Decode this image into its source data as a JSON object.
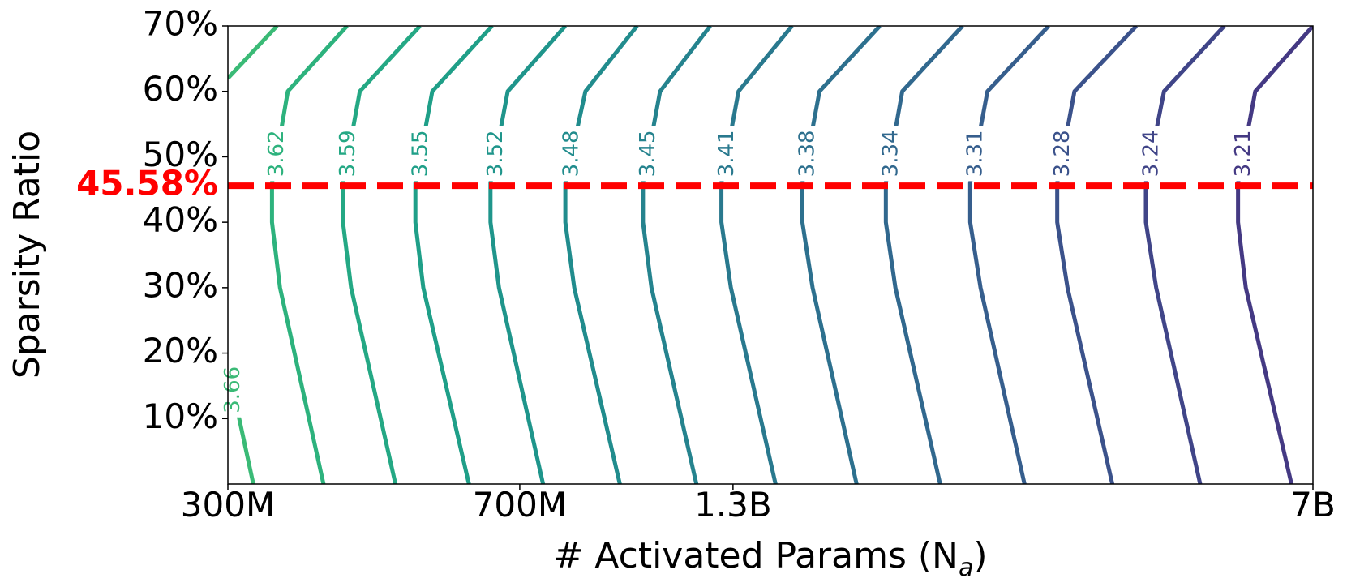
{
  "chart_data": {
    "type": "line",
    "xlabel": [
      "# Activated Params (N",
      "a",
      ")"
    ],
    "ylabel": "Sparsity Ratio",
    "xscale": "log",
    "xlim": [
      300000000,
      7000000000
    ],
    "xticks": [
      {
        "value": 300000000,
        "label": "300M"
      },
      {
        "value": 700000000,
        "label": "700M"
      },
      {
        "value": 1300000000,
        "label": "1.3B"
      },
      {
        "value": 7000000000,
        "label": "7B"
      }
    ],
    "ylim": [
      0,
      70
    ],
    "yticks": [
      {
        "value": 10,
        "label": "10%"
      },
      {
        "value": 20,
        "label": "20%"
      },
      {
        "value": 30,
        "label": "30%"
      },
      {
        "value": 40,
        "label": "40%"
      },
      {
        "value": 50,
        "label": "50%"
      },
      {
        "value": 60,
        "label": "60%"
      },
      {
        "value": 70,
        "label": "70%"
      }
    ],
    "hline": {
      "value": 45.58,
      "label": "45.58%",
      "color": "#ff0000"
    },
    "series": [
      {
        "name": "3.66",
        "color": "#3aba76",
        "x": [
          323000000,
          300000000,
          null,
          300000000,
          346000000
        ],
        "values": [
          0,
          18,
          null,
          62,
          70
        ]
      },
      {
        "name": "3.62",
        "color": "#2db27d",
        "x": [
          396000000,
          349000000,
          341000000,
          341000000,
          357000000,
          424000000
        ],
        "values": [
          0,
          30,
          40,
          46,
          60,
          70
        ]
      },
      {
        "name": "3.59",
        "color": "#24a884",
        "x": [
          488000000,
          429000000,
          419000000,
          419000000,
          440000000,
          524000000
        ],
        "values": [
          0,
          30,
          40,
          46,
          60,
          70
        ]
      },
      {
        "name": "3.55",
        "color": "#1f9f88",
        "x": [
          604000000,
          529000000,
          517000000,
          517000000,
          543000000,
          646000000
        ],
        "values": [
          0,
          30,
          40,
          46,
          60,
          70
        ]
      },
      {
        "name": "3.52",
        "color": "#1f958b",
        "x": [
          749000000,
          659000000,
          643000000,
          643000000,
          676000000,
          799000000
        ],
        "values": [
          0,
          30,
          40,
          46,
          60,
          70
        ]
      },
      {
        "name": "3.48",
        "color": "#218c8d",
        "x": [
          936000000,
          820000000,
          799000000,
          799000000,
          847000000,
          984000000
        ],
        "values": [
          0,
          30,
          40,
          46,
          60,
          70
        ]
      },
      {
        "name": "3.45",
        "color": "#25838e",
        "x": [
          1169000000,
          1026000000,
          1001000000,
          1001000000,
          1052000000,
          1217000000
        ],
        "values": [
          0,
          30,
          40,
          46,
          60,
          70
        ]
      },
      {
        "name": "3.41",
        "color": "#29798e",
        "x": [
          1471000000,
          1292000000,
          1257000000,
          1257000000,
          1321000000,
          1543000000
        ],
        "values": [
          0,
          30,
          40,
          46,
          60,
          70
        ]
      },
      {
        "name": "3.38",
        "color": "#2d708e",
        "x": [
          1861000000,
          1638000000,
          1590000000,
          1590000000,
          1671000000,
          1991000000
        ],
        "values": [
          0,
          30,
          40,
          46,
          60,
          70
        ]
      },
      {
        "name": "3.34",
        "color": "#31688e",
        "x": [
          2372000000,
          2083000000,
          2026000000,
          2026000000,
          2125000000,
          2531000000
        ],
        "values": [
          0,
          30,
          40,
          46,
          60,
          70
        ]
      },
      {
        "name": "3.31",
        "color": "#365e8d",
        "x": [
          3030000000,
          2667000000,
          2588000000,
          2588000000,
          2721000000,
          3250000000
        ],
        "values": [
          0,
          30,
          40,
          46,
          60,
          70
        ]
      },
      {
        "name": "3.28",
        "color": "#3b528b",
        "x": [
          3910000000,
          3433000000,
          3332000000,
          3332000000,
          3503000000,
          4193000000
        ],
        "values": [
          0,
          30,
          40,
          46,
          60,
          70
        ]
      },
      {
        "name": "3.24",
        "color": "#404588",
        "x": [
          5046000000,
          4441000000,
          4310000000,
          4310000000,
          4543000000,
          5412000000
        ],
        "values": [
          0,
          30,
          40,
          46,
          60,
          70
        ]
      },
      {
        "name": "3.21",
        "color": "#443983",
        "x": [
          6577000000,
          5760000000,
          5632000000,
          5632000000,
          5921000000,
          7000000000
        ],
        "values": [
          0,
          30,
          40,
          46,
          60,
          70
        ]
      }
    ]
  }
}
